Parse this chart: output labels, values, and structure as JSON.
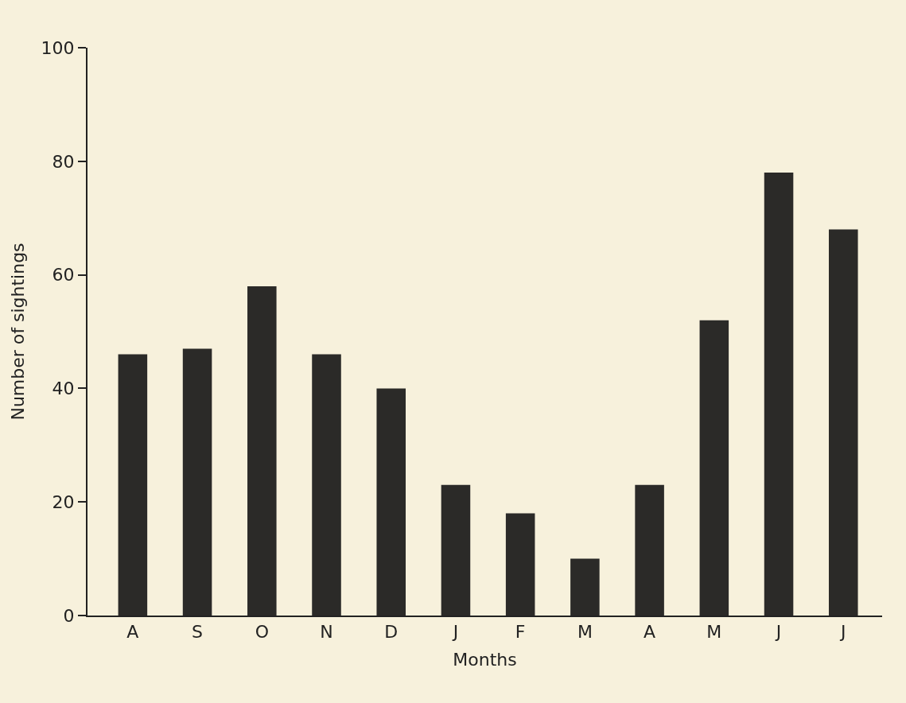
{
  "chart_data": {
    "type": "bar",
    "xlabel": "Months",
    "ylabel": "Number of sightings",
    "categories": [
      "A",
      "S",
      "O",
      "N",
      "D",
      "J",
      "F",
      "M",
      "A",
      "M",
      "J",
      "J"
    ],
    "values": [
      46,
      47,
      58,
      46,
      40,
      23,
      18,
      10,
      23,
      52,
      78,
      68
    ],
    "color": "#2b2a28",
    "ylim": [
      0,
      100
    ],
    "yticks": [
      0,
      20,
      40,
      60,
      80,
      100
    ],
    "grid": false
  }
}
